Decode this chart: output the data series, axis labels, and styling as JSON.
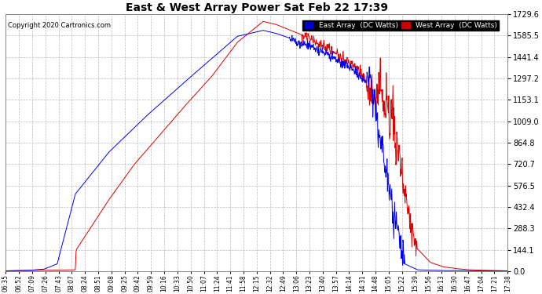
{
  "title": "East & West Array Power Sat Feb 22 17:39",
  "copyright": "Copyright 2020 Cartronics.com",
  "legend_east": "East Array  (DC Watts)",
  "legend_west": "West Array  (DC Watts)",
  "east_color": "#0000ee",
  "west_color": "#dd0000",
  "bg_color": "#ffffff",
  "grid_color": "#bbbbbb",
  "ylim": [
    0.0,
    1729.6
  ],
  "yticks": [
    0.0,
    144.1,
    288.3,
    432.4,
    576.5,
    720.7,
    864.8,
    1009.0,
    1153.1,
    1297.2,
    1441.4,
    1585.5,
    1729.6
  ],
  "x_labels": [
    "06:35",
    "06:52",
    "07:09",
    "07:26",
    "07:43",
    "08:07",
    "08:24",
    "08:51",
    "09:08",
    "09:25",
    "09:42",
    "09:59",
    "10:16",
    "10:33",
    "10:50",
    "11:07",
    "11:24",
    "11:41",
    "11:58",
    "12:15",
    "12:32",
    "12:49",
    "13:06",
    "13:23",
    "13:40",
    "13:57",
    "14:14",
    "14:31",
    "14:48",
    "15:05",
    "15:22",
    "15:39",
    "15:56",
    "16:13",
    "16:30",
    "16:47",
    "17:04",
    "17:21",
    "17:38"
  ]
}
